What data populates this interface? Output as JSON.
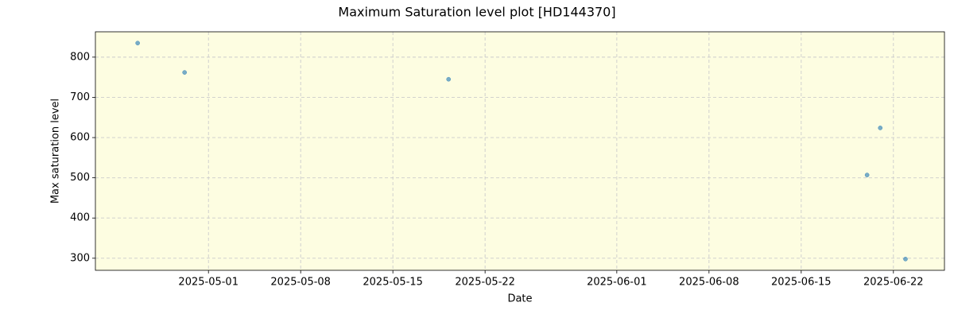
{
  "chart_data": {
    "type": "scatter",
    "title": "Maximum Saturation level plot [HD144370]",
    "x_label": "Date",
    "y_label": "Max saturation level",
    "series": [
      {
        "name": "Max saturation level",
        "color": "#1f77b4",
        "x": [
          "2025-04-25T15:00",
          "2025-04-29T04:30",
          "2025-05-19T05:30",
          "2025-06-20T00:00",
          "2025-06-21T00:00",
          "2025-06-22T22:00"
        ],
        "values": [
          835,
          762,
          745,
          507,
          624,
          298
        ]
      }
    ],
    "xlim": [
      "2025-04-22T10:00",
      "2025-06-25T21:00"
    ],
    "xticks": [
      "2025-05-01",
      "2025-05-08",
      "2025-05-15",
      "2025-05-22",
      "2025-06-01",
      "2025-06-08",
      "2025-06-15",
      "2025-06-22"
    ],
    "ylim": [
      270,
      863
    ],
    "yticks": [
      300,
      400,
      500,
      600,
      700,
      800
    ],
    "grid": true,
    "background": "#fdfde1"
  }
}
